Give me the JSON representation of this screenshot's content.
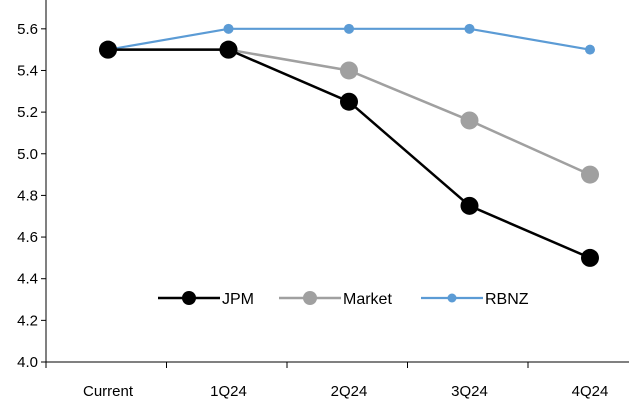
{
  "chart_data": {
    "type": "line",
    "title": "",
    "xlabel": "",
    "ylabel": "",
    "categories": [
      "Current",
      "1Q24",
      "2Q24",
      "3Q24",
      "4Q24"
    ],
    "ylim": [
      4.0,
      5.7
    ],
    "yticks": [
      "4.0",
      "4.2",
      "4.4",
      "4.6",
      "4.8",
      "5.0",
      "5.2",
      "5.4",
      "5.6"
    ],
    "grid": false,
    "legend_position": "bottom-center",
    "series": [
      {
        "name": "JPM",
        "values": [
          5.5,
          5.5,
          5.25,
          4.75,
          4.5
        ],
        "color": "#000000",
        "marker": "large-circle"
      },
      {
        "name": "Market",
        "values": [
          5.5,
          5.5,
          5.4,
          5.16,
          4.9
        ],
        "color": "#a0a0a0",
        "marker": "large-circle"
      },
      {
        "name": "RBNZ",
        "values": [
          5.5,
          5.6,
          5.6,
          5.6,
          5.5
        ],
        "color": "#5b9bd5",
        "marker": "small-circle"
      }
    ]
  }
}
